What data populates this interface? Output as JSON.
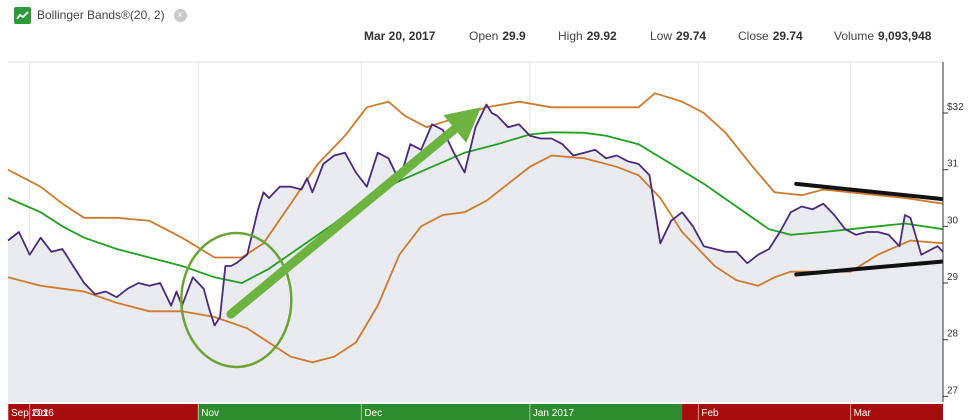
{
  "indicator": {
    "title": "Bollinger Bands®(20, 2)"
  },
  "quote": {
    "date": "Mar 20, 2017",
    "open_label": "Open",
    "open": "29.9",
    "high_label": "High",
    "high": "29.92",
    "low_label": "Low",
    "low": "29.74",
    "close_label": "Close",
    "close": "29.74",
    "volume_label": "Volume",
    "volume": "9,093,948"
  },
  "colors": {
    "price": "#4b2a7a",
    "bands": "#cd7a2c",
    "middle": "#22a022",
    "fill": "#e8e8f0",
    "arrow": "#6db33f",
    "circle": "#6aa534",
    "trendlines": "#111111",
    "timeline_red": "#a80d0d",
    "timeline_green": "#2e8c2e"
  },
  "chart_data": {
    "type": "line",
    "y_axis_side": "right",
    "ylim": [
      26.9,
      32.9
    ],
    "yticks": [
      {
        "value": 27,
        "label": "27"
      },
      {
        "value": 28,
        "label": "28"
      },
      {
        "value": 29,
        "label": "29"
      },
      {
        "value": 30,
        "label": "30"
      },
      {
        "value": 31,
        "label": "31"
      },
      {
        "value": 32,
        "label": "$32"
      }
    ],
    "month_labels": [
      {
        "label": "Sep 2016",
        "day": 0
      },
      {
        "label": "Oct",
        "day": 4
      },
      {
        "label": "Nov",
        "day": 35
      },
      {
        "label": "Dec",
        "day": 65
      },
      {
        "label": "Jan 2017",
        "day": 96
      },
      {
        "label": "Feb",
        "day": 127
      },
      {
        "label": "Mar",
        "day": 155
      }
    ],
    "timeline_segments": [
      {
        "from_day": 0,
        "to_day": 35,
        "color": "red"
      },
      {
        "from_day": 35,
        "to_day": 124,
        "color": "green"
      },
      {
        "from_day": 124,
        "to_day": 172,
        "color": "red"
      }
    ],
    "xlim_days": [
      0,
      172
    ],
    "series": [
      {
        "key": "upper",
        "points": [
          [
            0,
            31.0
          ],
          [
            6,
            30.7
          ],
          [
            10,
            30.4
          ],
          [
            14,
            30.15
          ],
          [
            20,
            30.15
          ],
          [
            26,
            30.1
          ],
          [
            32,
            29.8
          ],
          [
            38,
            29.45
          ],
          [
            43,
            29.45
          ],
          [
            47,
            29.7
          ],
          [
            52,
            30.4
          ],
          [
            57,
            31.1
          ],
          [
            62,
            31.6
          ],
          [
            66,
            32.1
          ],
          [
            70,
            32.2
          ],
          [
            73,
            31.95
          ],
          [
            77,
            31.75
          ],
          [
            82,
            31.9
          ],
          [
            88,
            32.1
          ],
          [
            94,
            32.2
          ],
          [
            100,
            32.1
          ],
          [
            106,
            32.1
          ],
          [
            112,
            32.1
          ],
          [
            116,
            32.1
          ],
          [
            119,
            32.35
          ],
          [
            124,
            32.2
          ],
          [
            128,
            32.0
          ],
          [
            132,
            31.65
          ],
          [
            137,
            31.05
          ],
          [
            141,
            30.6
          ],
          [
            146,
            30.55
          ],
          [
            150,
            30.65
          ],
          [
            155,
            30.6
          ],
          [
            160,
            30.55
          ],
          [
            165,
            30.5
          ],
          [
            172,
            30.4
          ]
        ]
      },
      {
        "key": "middle",
        "points": [
          [
            0,
            30.5
          ],
          [
            6,
            30.25
          ],
          [
            10,
            30.0
          ],
          [
            14,
            29.8
          ],
          [
            20,
            29.6
          ],
          [
            26,
            29.45
          ],
          [
            32,
            29.3
          ],
          [
            38,
            29.1
          ],
          [
            43,
            29.0
          ],
          [
            48,
            29.25
          ],
          [
            54,
            29.65
          ],
          [
            60,
            30.05
          ],
          [
            66,
            30.5
          ],
          [
            72,
            30.8
          ],
          [
            78,
            31.05
          ],
          [
            84,
            31.3
          ],
          [
            90,
            31.45
          ],
          [
            96,
            31.62
          ],
          [
            100,
            31.66
          ],
          [
            106,
            31.65
          ],
          [
            110,
            31.6
          ],
          [
            116,
            31.45
          ],
          [
            122,
            31.1
          ],
          [
            128,
            30.75
          ],
          [
            134,
            30.35
          ],
          [
            140,
            29.95
          ],
          [
            144,
            29.85
          ],
          [
            150,
            29.9
          ],
          [
            155,
            29.95
          ],
          [
            160,
            30.0
          ],
          [
            165,
            30.05
          ],
          [
            172,
            29.95
          ]
        ]
      },
      {
        "key": "lower",
        "points": [
          [
            0,
            29.1
          ],
          [
            6,
            28.95
          ],
          [
            10,
            28.9
          ],
          [
            14,
            28.85
          ],
          [
            20,
            28.65
          ],
          [
            26,
            28.5
          ],
          [
            32,
            28.5
          ],
          [
            38,
            28.4
          ],
          [
            44,
            28.2
          ],
          [
            48,
            27.95
          ],
          [
            52,
            27.7
          ],
          [
            56,
            27.6
          ],
          [
            60,
            27.7
          ],
          [
            64,
            27.95
          ],
          [
            68,
            28.6
          ],
          [
            72,
            29.5
          ],
          [
            76,
            30.0
          ],
          [
            80,
            30.2
          ],
          [
            84,
            30.25
          ],
          [
            88,
            30.45
          ],
          [
            92,
            30.75
          ],
          [
            96,
            31.05
          ],
          [
            100,
            31.25
          ],
          [
            106,
            31.2
          ],
          [
            112,
            31.05
          ],
          [
            116,
            30.9
          ],
          [
            120,
            30.5
          ],
          [
            124,
            29.9
          ],
          [
            130,
            29.3
          ],
          [
            134,
            29.05
          ],
          [
            138,
            28.95
          ],
          [
            141,
            29.1
          ],
          [
            144,
            29.2
          ],
          [
            148,
            29.2
          ],
          [
            155,
            29.2
          ],
          [
            160,
            29.5
          ],
          [
            166,
            29.75
          ],
          [
            172,
            29.7
          ]
        ]
      },
      {
        "key": "price",
        "points": [
          [
            0,
            29.75
          ],
          [
            2,
            29.9
          ],
          [
            4,
            29.5
          ],
          [
            6,
            29.8
          ],
          [
            8,
            29.55
          ],
          [
            10,
            29.6
          ],
          [
            12,
            29.3
          ],
          [
            14,
            29.0
          ],
          [
            16,
            28.8
          ],
          [
            18,
            28.85
          ],
          [
            20,
            28.75
          ],
          [
            22,
            28.9
          ],
          [
            24,
            29.0
          ],
          [
            26,
            28.95
          ],
          [
            28,
            29.0
          ],
          [
            30,
            28.6
          ],
          [
            31,
            28.85
          ],
          [
            32,
            28.6
          ],
          [
            34,
            29.1
          ],
          [
            36,
            28.9
          ],
          [
            37,
            28.55
          ],
          [
            38,
            28.25
          ],
          [
            39,
            28.4
          ],
          [
            40,
            29.3
          ],
          [
            41,
            29.3
          ],
          [
            42,
            29.35
          ],
          [
            44,
            29.5
          ],
          [
            46,
            30.3
          ],
          [
            47,
            30.6
          ],
          [
            48,
            30.5
          ],
          [
            50,
            30.7
          ],
          [
            52,
            30.7
          ],
          [
            54,
            30.65
          ],
          [
            55,
            30.85
          ],
          [
            56,
            30.6
          ],
          [
            58,
            31.1
          ],
          [
            60,
            31.25
          ],
          [
            62,
            31.3
          ],
          [
            64,
            30.95
          ],
          [
            66,
            30.7
          ],
          [
            68,
            31.3
          ],
          [
            70,
            31.2
          ],
          [
            72,
            30.8
          ],
          [
            74,
            31.45
          ],
          [
            76,
            31.35
          ],
          [
            78,
            31.8
          ],
          [
            80,
            31.7
          ],
          [
            82,
            31.3
          ],
          [
            84,
            30.95
          ],
          [
            86,
            31.75
          ],
          [
            88,
            32.15
          ],
          [
            89,
            32.0
          ],
          [
            90,
            31.95
          ],
          [
            92,
            31.75
          ],
          [
            94,
            31.8
          ],
          [
            96,
            31.6
          ],
          [
            98,
            31.55
          ],
          [
            100,
            31.55
          ],
          [
            102,
            31.45
          ],
          [
            104,
            31.25
          ],
          [
            106,
            31.3
          ],
          [
            108,
            31.35
          ],
          [
            110,
            31.2
          ],
          [
            112,
            31.25
          ],
          [
            114,
            31.15
          ],
          [
            116,
            31.1
          ],
          [
            118,
            30.9
          ],
          [
            120,
            29.7
          ],
          [
            122,
            30.1
          ],
          [
            124,
            30.25
          ],
          [
            126,
            30.0
          ],
          [
            128,
            29.65
          ],
          [
            130,
            29.6
          ],
          [
            132,
            29.55
          ],
          [
            134,
            29.55
          ],
          [
            136,
            29.35
          ],
          [
            138,
            29.5
          ],
          [
            140,
            29.6
          ],
          [
            142,
            29.9
          ],
          [
            144,
            30.25
          ],
          [
            146,
            30.35
          ],
          [
            148,
            30.3
          ],
          [
            150,
            30.4
          ],
          [
            152,
            30.2
          ],
          [
            154,
            29.95
          ],
          [
            156,
            29.85
          ],
          [
            158,
            29.9
          ],
          [
            160,
            29.9
          ],
          [
            162,
            29.85
          ],
          [
            164,
            29.65
          ],
          [
            165,
            30.2
          ],
          [
            166,
            30.15
          ],
          [
            168,
            29.5
          ],
          [
            170,
            29.6
          ],
          [
            171,
            29.65
          ],
          [
            172,
            29.55
          ]
        ]
      }
    ],
    "annotations": {
      "circle": {
        "day": 42,
        "value": 28.7
      },
      "arrow": {
        "from": {
          "day": 41,
          "value": 28.45
        },
        "to": {
          "day": 87,
          "value": 32.1
        }
      },
      "trendlines": [
        {
          "from": {
            "day": 145,
            "value": 30.75
          },
          "to": {
            "day": 172,
            "value": 30.48
          }
        },
        {
          "from": {
            "day": 145,
            "value": 29.15
          },
          "to": {
            "day": 172,
            "value": 29.38
          }
        }
      ]
    }
  }
}
